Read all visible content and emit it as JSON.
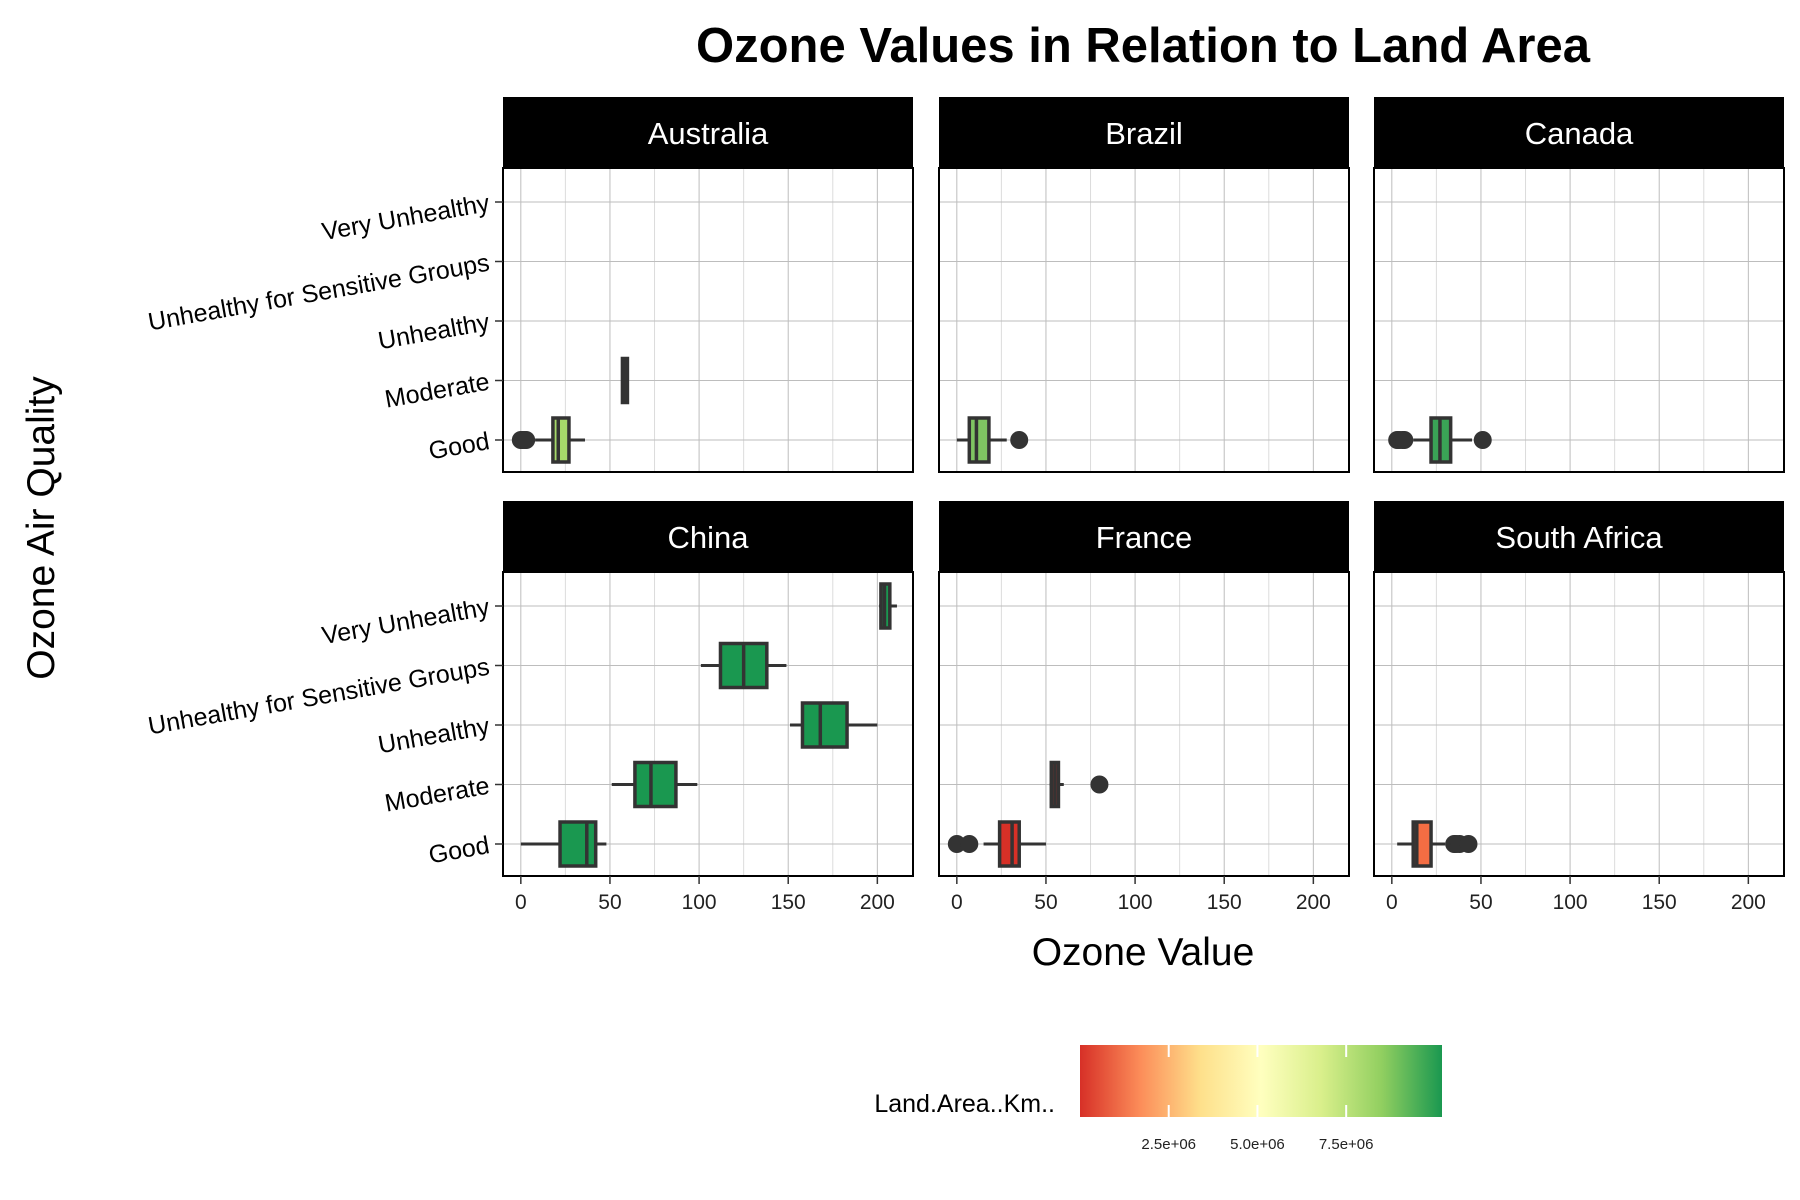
{
  "chart_data": {
    "type": "boxplot",
    "title": "Ozone Values in Relation to Land Area",
    "xlabel": "Ozone Value",
    "ylabel": "Ozone Air Quality",
    "xlim": [
      -10,
      220
    ],
    "x_ticks": [
      0,
      50,
      100,
      150,
      200
    ],
    "categories": [
      "Good",
      "Moderate",
      "Unhealthy",
      "Unhealthy for Sensitive Groups",
      "Very Unhealthy"
    ],
    "grid": true,
    "facet_layout": {
      "rows": 2,
      "cols": 3
    },
    "colors": {
      "strip_bg": "#000000",
      "box_stroke": "#333333",
      "grid": "#bdbdbd",
      "outlier": "#333333"
    },
    "legend": {
      "title": "Land.Area..Km..",
      "position": "bottom",
      "range": [
        0,
        10200000
      ],
      "ticks": [
        {
          "value": 2500000,
          "label": "2.5e+06"
        },
        {
          "value": 5000000,
          "label": "5.0e+06"
        },
        {
          "value": 7500000,
          "label": "7.5e+06"
        }
      ],
      "gradient": [
        "#d73027",
        "#fc8d59",
        "#fee08b",
        "#ffffbf",
        "#d9ef8b",
        "#91cf60",
        "#1a9850"
      ]
    },
    "panels": [
      {
        "name": "Australia",
        "fill": "#a6d96a",
        "boxes": [
          {
            "category": "Good",
            "lo": 8,
            "q1": 18,
            "median": 21,
            "q3": 27,
            "hi": 36,
            "outliers": [
              0,
              1,
              2,
              3
            ]
          },
          {
            "category": "Moderate",
            "lo": 57,
            "q1": 57,
            "median": 58,
            "q3": 59,
            "hi": 59,
            "outliers": []
          }
        ]
      },
      {
        "name": "Brazil",
        "fill": "#7fc462",
        "boxes": [
          {
            "category": "Good",
            "lo": 0,
            "q1": 7,
            "median": 11,
            "q3": 18,
            "hi": 28,
            "outliers": [
              35
            ]
          }
        ]
      },
      {
        "name": "Canada",
        "fill": "#3aa356",
        "boxes": [
          {
            "category": "Good",
            "lo": 12,
            "q1": 22,
            "median": 27,
            "q3": 33,
            "hi": 45,
            "outliers": [
              3,
              4,
              6,
              7,
              51
            ]
          }
        ]
      },
      {
        "name": "China",
        "fill": "#1a9850",
        "boxes": [
          {
            "category": "Good",
            "lo": 0,
            "q1": 22,
            "median": 37,
            "q3": 42,
            "hi": 48,
            "outliers": []
          },
          {
            "category": "Moderate",
            "lo": 51,
            "q1": 64,
            "median": 73,
            "q3": 87,
            "hi": 99,
            "outliers": []
          },
          {
            "category": "Unhealthy",
            "lo": 151,
            "q1": 158,
            "median": 168,
            "q3": 183,
            "hi": 200,
            "outliers": []
          },
          {
            "category": "Unhealthy for Sensitive Groups",
            "lo": 101,
            "q1": 112,
            "median": 125,
            "q3": 138,
            "hi": 149,
            "outliers": []
          },
          {
            "category": "Very Unhealthy",
            "lo": 201,
            "q1": 202,
            "median": 204,
            "q3": 207,
            "hi": 211,
            "outliers": []
          }
        ]
      },
      {
        "name": "France",
        "fill": "#d73027",
        "boxes": [
          {
            "category": "Good",
            "lo": 15,
            "q1": 24,
            "median": 31,
            "q3": 35,
            "hi": 50,
            "outliers": [
              0,
              7
            ]
          },
          {
            "category": "Moderate",
            "lo": 52,
            "q1": 53,
            "median": 55,
            "q3": 57,
            "hi": 60,
            "outliers": [
              80
            ]
          }
        ]
      },
      {
        "name": "South Africa",
        "fill": "#f46d43",
        "boxes": [
          {
            "category": "Good",
            "lo": 3,
            "q1": 12,
            "median": 14,
            "q3": 22,
            "hi": 30,
            "outliers": [
              35,
              36,
              38,
              43
            ]
          }
        ]
      }
    ]
  }
}
